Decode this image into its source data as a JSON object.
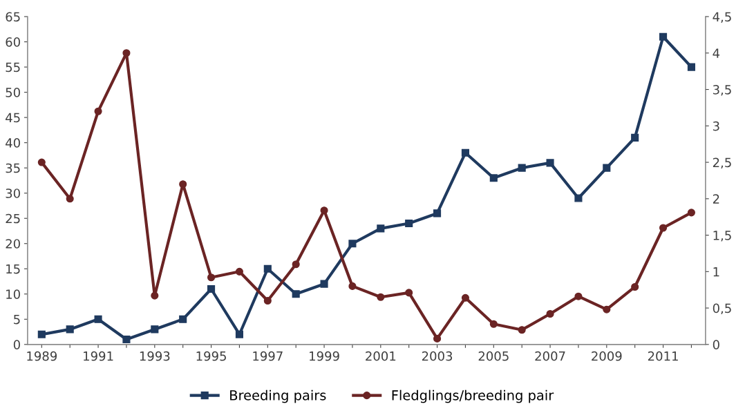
{
  "chart_data": {
    "type": "line",
    "categories": [
      "1989",
      null,
      "1991",
      null,
      "1993",
      null,
      "1995",
      null,
      "1997",
      null,
      "1999",
      null,
      "2001",
      null,
      "2003",
      null,
      "2005",
      null,
      "2007",
      null,
      "2009",
      null,
      "2011",
      null
    ],
    "series": [
      {
        "name": "Breeding pairs",
        "color": "#1f3a5f",
        "marker": "square",
        "values": [
          2,
          3,
          5,
          1,
          3,
          5,
          11,
          2,
          15,
          10,
          12,
          20,
          23,
          24,
          26,
          38,
          33,
          35,
          36,
          29,
          35,
          41,
          61,
          55
        ]
      },
      {
        "name": "Fledglings/breeding pair",
        "color": "#6b2424",
        "marker": "circle",
        "axis": "y2",
        "values": [
          2.5,
          2.0,
          3.2,
          4.0,
          0.67,
          2.2,
          0.92,
          1.0,
          0.6,
          1.1,
          1.84,
          0.8,
          0.65,
          0.71,
          0.08,
          0.64,
          0.28,
          0.2,
          0.42,
          0.66,
          0.48,
          0.79,
          1.6,
          1.81
        ]
      }
    ],
    "ylim": [
      0,
      65
    ],
    "yticks": [
      0,
      5,
      10,
      15,
      20,
      25,
      30,
      35,
      40,
      45,
      50,
      55,
      60,
      65
    ],
    "y2lim": [
      0,
      4.5
    ],
    "y2ticks": [
      0,
      {
        "value": 0.5,
        "label": "0,5"
      },
      1,
      {
        "value": 1.5,
        "label": "1,5"
      },
      2,
      {
        "value": 2.5,
        "label": "2,5"
      },
      3,
      {
        "value": 3.5,
        "label": "3,5"
      },
      4,
      {
        "value": 4.5,
        "label": "4,5"
      }
    ],
    "grid": false,
    "legend": "bottom",
    "line_style": "solid"
  }
}
